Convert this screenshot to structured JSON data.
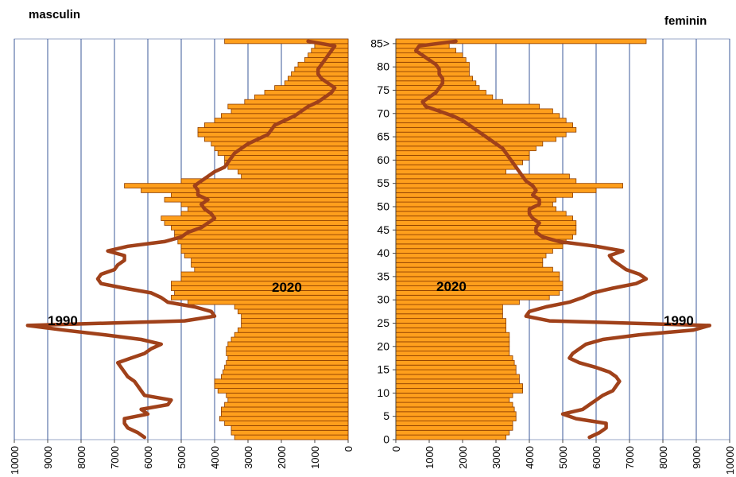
{
  "panels": {
    "left_title": "masculin",
    "right_title": "feminin"
  },
  "chart_data": {
    "type": "bar",
    "orientation": "horizontal-population-pyramid",
    "y_tick_labels": [
      "0",
      "5",
      "10",
      "15",
      "20",
      "25",
      "30",
      "35",
      "40",
      "45",
      "50",
      "55",
      "60",
      "65",
      "70",
      "75",
      "80",
      "85>"
    ],
    "x_tick_labels": [
      "0",
      "1000",
      "2000",
      "3000",
      "4000",
      "5000",
      "6000",
      "7000",
      "8000",
      "9000",
      "10000"
    ],
    "xlim": [
      0,
      10000
    ],
    "ages": [
      0,
      1,
      2,
      3,
      4,
      5,
      6,
      7,
      8,
      9,
      10,
      11,
      12,
      13,
      14,
      15,
      16,
      17,
      18,
      19,
      20,
      21,
      22,
      23,
      24,
      25,
      26,
      27,
      28,
      29,
      30,
      31,
      32,
      33,
      34,
      35,
      36,
      37,
      38,
      39,
      40,
      41,
      42,
      43,
      44,
      45,
      46,
      47,
      48,
      49,
      50,
      51,
      52,
      53,
      54,
      55,
      56,
      57,
      58,
      59,
      60,
      61,
      62,
      63,
      64,
      65,
      66,
      67,
      68,
      69,
      70,
      71,
      72,
      73,
      74,
      75,
      76,
      77,
      78,
      79,
      80,
      81,
      82,
      83,
      84,
      85
    ],
    "grid": true,
    "colors": {
      "bar_fill": "#ff9f1c",
      "bar_edge": "#8b3c00",
      "line_1990": "#a0411a",
      "grid": "#3b5998"
    },
    "series": [
      {
        "name": "2020",
        "side": "masculin",
        "values": [
          3400,
          3500,
          3500,
          3700,
          3850,
          3800,
          3800,
          3700,
          3600,
          3650,
          3900,
          4000,
          4000,
          3800,
          3750,
          3700,
          3650,
          3600,
          3650,
          3650,
          3600,
          3500,
          3400,
          3300,
          3200,
          3200,
          3200,
          3300,
          3400,
          4800,
          5300,
          5200,
          5300,
          5300,
          5000,
          5000,
          4600,
          4700,
          4700,
          4900,
          5000,
          5000,
          5100,
          5200,
          5200,
          5300,
          5500,
          5600,
          5000,
          4800,
          5000,
          5500,
          5300,
          6200,
          6700,
          5000,
          3200,
          3300,
          3600,
          3700,
          3700,
          3900,
          4000,
          4100,
          4300,
          4500,
          4500,
          4300,
          4000,
          3800,
          3500,
          3600,
          3100,
          2800,
          2500,
          2200,
          1900,
          1800,
          1700,
          1600,
          1500,
          1300,
          1200,
          1100,
          1000,
          3700
        ]
      },
      {
        "name": "1990",
        "side": "masculin",
        "values": [
          6100,
          6300,
          6600,
          6700,
          6700,
          6000,
          6200,
          5400,
          5300,
          6100,
          6200,
          6300,
          6400,
          6600,
          6700,
          6800,
          6900,
          6500,
          6100,
          5900,
          5600,
          6200,
          7300,
          8500,
          9600,
          4900,
          4000,
          4100,
          4600,
          5400,
          5600,
          5900,
          6700,
          7400,
          7500,
          7400,
          7000,
          6900,
          6700,
          6700,
          7200,
          6600,
          5500,
          5000,
          4800,
          4400,
          4200,
          4000,
          4100,
          4300,
          4400,
          4200,
          4500,
          4500,
          4600,
          4400,
          4200,
          4000,
          3700,
          3600,
          3500,
          3400,
          3200,
          3000,
          2700,
          2400,
          2300,
          2200,
          1900,
          1600,
          1400,
          1200,
          900,
          700,
          500,
          400,
          600,
          800,
          900,
          900,
          800,
          700,
          600,
          500,
          400,
          1200
        ]
      },
      {
        "name": "2020",
        "side": "feminin",
        "values": [
          3300,
          3400,
          3500,
          3500,
          3600,
          3600,
          3550,
          3500,
          3400,
          3500,
          3800,
          3800,
          3700,
          3700,
          3600,
          3600,
          3550,
          3500,
          3400,
          3400,
          3400,
          3400,
          3400,
          3300,
          3300,
          3300,
          3200,
          3200,
          3200,
          3700,
          4600,
          4900,
          5000,
          5000,
          4900,
          4900,
          4700,
          4400,
          4400,
          4500,
          4700,
          5000,
          5100,
          5300,
          5400,
          5400,
          5400,
          5300,
          5100,
          4800,
          4700,
          4800,
          5300,
          6000,
          6800,
          5400,
          5200,
          3300,
          3600,
          3800,
          4000,
          4000,
          4200,
          4400,
          4800,
          5100,
          5400,
          5300,
          5100,
          4900,
          4700,
          4300,
          3200,
          2900,
          2700,
          2500,
          2400,
          2300,
          2200,
          2200,
          2200,
          2100,
          2000,
          1800,
          1600,
          7500
        ]
      },
      {
        "name": "1990",
        "side": "feminin",
        "values": [
          5800,
          6100,
          6300,
          6300,
          5400,
          5000,
          5600,
          5800,
          6000,
          6200,
          6500,
          6600,
          6700,
          6600,
          6400,
          6000,
          5500,
          5200,
          5300,
          5500,
          5700,
          6200,
          7300,
          8900,
          9400,
          4600,
          3900,
          4000,
          4500,
          5200,
          5600,
          5900,
          6500,
          7200,
          7500,
          7300,
          6900,
          6700,
          6500,
          6400,
          6800,
          6000,
          4900,
          4400,
          4200,
          4200,
          4300,
          4100,
          4000,
          4000,
          4300,
          4300,
          4100,
          4200,
          4100,
          3900,
          3800,
          3700,
          3600,
          3500,
          3400,
          3300,
          3200,
          3000,
          2800,
          2600,
          2400,
          2200,
          2000,
          1700,
          1300,
          900,
          800,
          1000,
          1200,
          1300,
          1400,
          1400,
          1300,
          1300,
          1200,
          1000,
          800,
          600,
          700,
          1800
        ]
      }
    ],
    "annotations": [
      {
        "text": "1990",
        "side": "masculin"
      },
      {
        "text": "2020",
        "side": "masculin"
      },
      {
        "text": "2020",
        "side": "feminin"
      },
      {
        "text": "1990",
        "side": "feminin"
      }
    ]
  }
}
